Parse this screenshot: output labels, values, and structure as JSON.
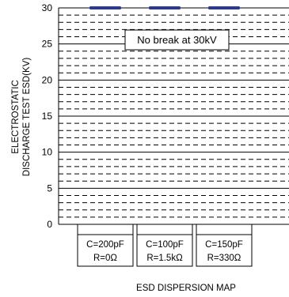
{
  "chart_data": {
    "type": "bar",
    "title": "",
    "ylabel_lines": [
      "ELECTROSTATIC",
      "DISCHARGE TEST ESD(KV)"
    ],
    "xlabel": "ESD DISPERSION MAP",
    "ylim": [
      0,
      30
    ],
    "yticks": [
      0,
      5,
      10,
      15,
      20,
      25,
      30
    ],
    "categories": [
      {
        "line1": "C=200pF",
        "line2": "R=0Ω"
      },
      {
        "line1": "C=100pF",
        "line2": "R=1.5kΩ"
      },
      {
        "line1": "C=150pF",
        "line2": "R=330Ω"
      }
    ],
    "values": [
      30,
      30,
      30
    ],
    "annotation": "No break at 30kV",
    "grid": {
      "major_solid": true,
      "minor_dashed": true
    },
    "colors": {
      "marker": "#2b3a8c",
      "grid": "#000000"
    }
  }
}
